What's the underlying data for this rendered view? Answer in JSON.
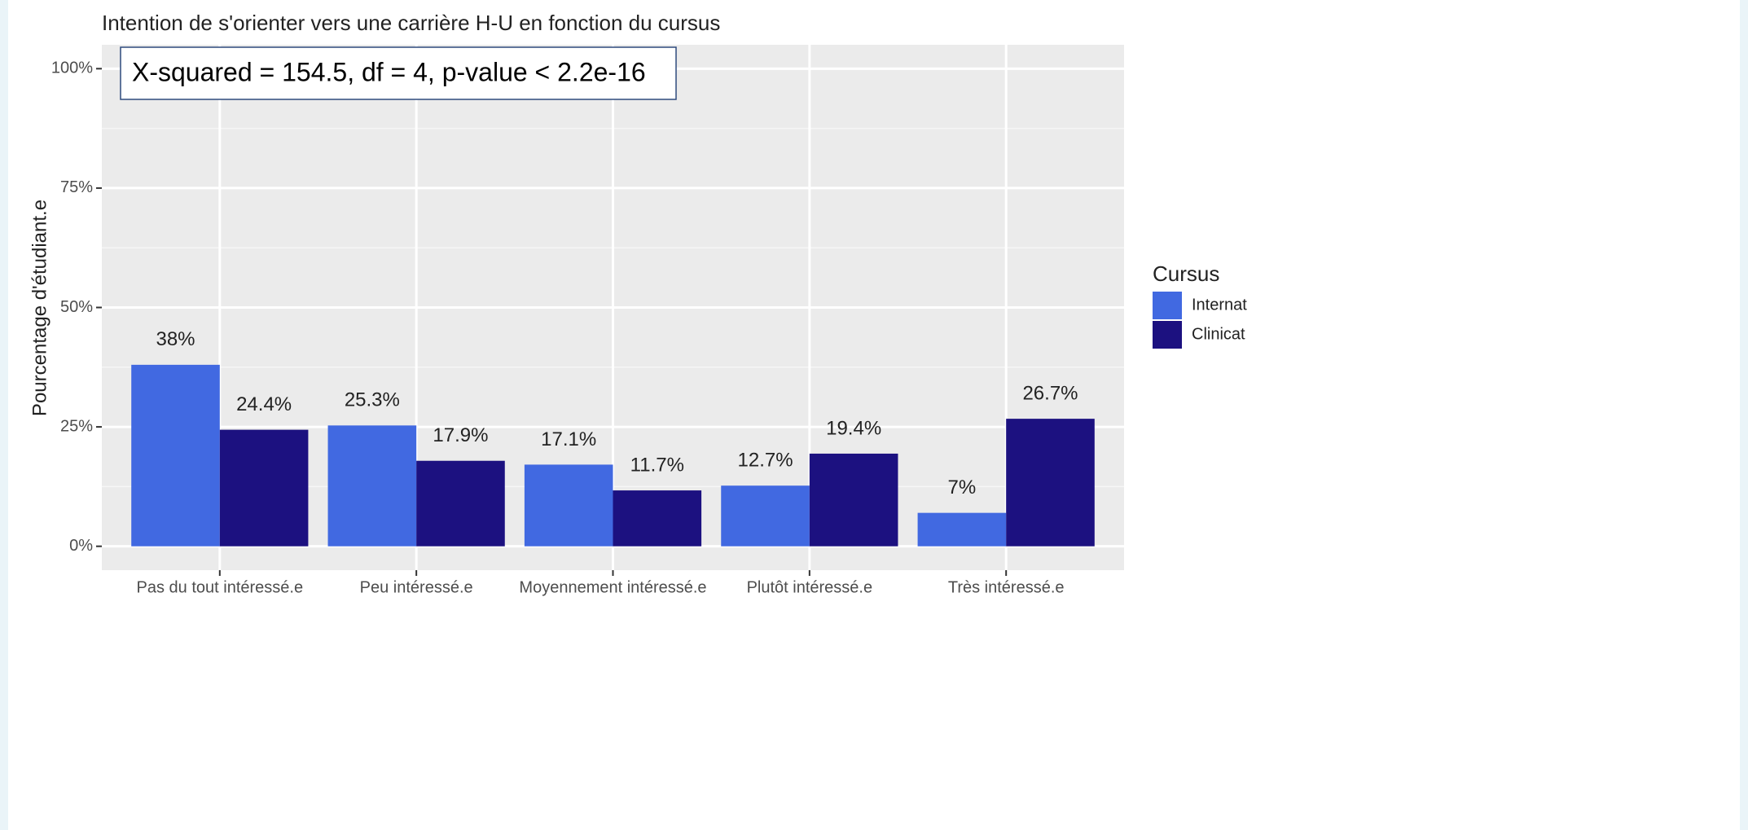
{
  "chart_data": {
    "type": "bar",
    "title": "Intention de s'orienter vers une carrière H-U en fonction du cursus",
    "annotation": "X-squared = 154.5, df = 4, p-value < 2.2e-16",
    "y_label": "Pourcentage d'étudiant.e",
    "legend_title": "Cursus",
    "legend_position": "right",
    "categories": [
      "Pas du tout intéressé.e",
      "Peu intéressé.e",
      "Moyennement intéressé.e",
      "Plutôt intéressé.e",
      "Très intéressé.e"
    ],
    "series": [
      {
        "name": "Internat",
        "color": "#4169e1",
        "values": [
          38,
          25.3,
          17.1,
          12.7,
          7
        ],
        "value_labels": [
          "38%",
          "25.3%",
          "17.1%",
          "12.7%",
          "7%"
        ]
      },
      {
        "name": "Clinicat",
        "color": "#1c1180",
        "values": [
          24.4,
          17.9,
          11.7,
          19.4,
          26.7
        ],
        "value_labels": [
          "24.4%",
          "17.9%",
          "11.7%",
          "19.4%",
          "26.7%"
        ]
      }
    ],
    "ylim": [
      -5,
      105
    ],
    "yticks": [
      {
        "value": 0,
        "label": "0%"
      },
      {
        "value": 25,
        "label": "25%"
      },
      {
        "value": 50,
        "label": "50%"
      },
      {
        "value": 75,
        "label": "75%"
      },
      {
        "value": 100,
        "label": "100%"
      }
    ],
    "grid": true,
    "minor_grid": true
  }
}
